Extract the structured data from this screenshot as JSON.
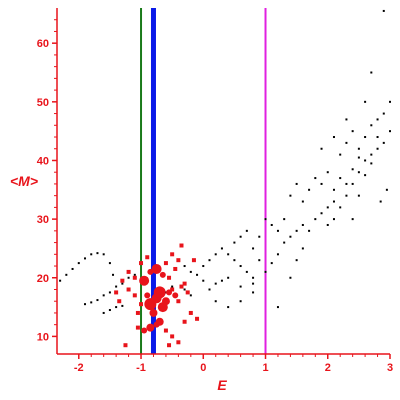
{
  "chart_data": {
    "type": "scatter",
    "xlabel": "E",
    "ylabel": "<M>",
    "xlim": [
      -2.35,
      3.0
    ],
    "ylim": [
      7,
      66
    ],
    "x_ticks": [
      -2,
      -1,
      0,
      1,
      2,
      3
    ],
    "y_ticks": [
      10,
      20,
      30,
      40,
      50,
      60
    ],
    "x_tick_labels": [
      "-2",
      "-1",
      "0",
      "1",
      "2",
      "3"
    ],
    "y_tick_labels": [
      "10",
      "20",
      "30",
      "40",
      "50",
      "60"
    ],
    "grid": false,
    "colors": {
      "axes": "#e8141b",
      "black_points": "#000000",
      "red_points": "#e8141b"
    },
    "vertical_lines": [
      {
        "x": -1.0,
        "color": "#1a7a1a"
      },
      {
        "x": -0.8,
        "color": "#0a1ae8"
      },
      {
        "x": 1.0,
        "color": "#e020e0"
      }
    ],
    "series": [
      {
        "color": "#000000",
        "style": "small-dots",
        "points": [
          [
            -2.3,
            19.5
          ],
          [
            -2.2,
            20.5
          ],
          [
            -2.1,
            21.5
          ],
          [
            -2.0,
            22.5
          ],
          [
            -1.9,
            23.3
          ],
          [
            -1.8,
            24.0
          ],
          [
            -1.7,
            24.2
          ],
          [
            -1.6,
            24.0
          ],
          [
            -1.5,
            22.5
          ],
          [
            -1.45,
            20.5
          ],
          [
            -1.9,
            15.5
          ],
          [
            -1.8,
            15.8
          ],
          [
            -1.7,
            16.2
          ],
          [
            -1.6,
            17.0
          ],
          [
            -1.5,
            17.5
          ],
          [
            -1.4,
            18.5
          ],
          [
            -1.3,
            19.0
          ],
          [
            -1.2,
            20.0
          ],
          [
            -1.1,
            20.5
          ],
          [
            -1.6,
            14.0
          ],
          [
            -1.5,
            14.5
          ],
          [
            -1.4,
            15.0
          ],
          [
            -1.3,
            15.2
          ],
          [
            -0.4,
            23.0
          ],
          [
            -0.3,
            22.0
          ],
          [
            -0.2,
            21.0
          ],
          [
            -0.1,
            20.5
          ],
          [
            0.0,
            19.5
          ],
          [
            0.1,
            18.0
          ],
          [
            0.2,
            19.0
          ],
          [
            0.3,
            19.5
          ],
          [
            0.4,
            20.0
          ],
          [
            0.0,
            22.0
          ],
          [
            0.1,
            23.0
          ],
          [
            0.2,
            24.0
          ],
          [
            0.3,
            25.0
          ],
          [
            0.4,
            24.0
          ],
          [
            0.5,
            23.0
          ],
          [
            0.6,
            22.0
          ],
          [
            0.7,
            21.0
          ],
          [
            0.8,
            20.0
          ],
          [
            0.5,
            26.0
          ],
          [
            0.6,
            27.0
          ],
          [
            0.7,
            28.0
          ],
          [
            0.8,
            25.0
          ],
          [
            0.9,
            27.0
          ],
          [
            1.0,
            30.0
          ],
          [
            1.1,
            29.0
          ],
          [
            1.2,
            28.0
          ],
          [
            1.3,
            30.0
          ],
          [
            0.6,
            18.5
          ],
          [
            0.8,
            17.5
          ],
          [
            1.0,
            21.0
          ],
          [
            1.1,
            22.5
          ],
          [
            1.2,
            24.0
          ],
          [
            1.3,
            26.0
          ],
          [
            1.4,
            27.0
          ],
          [
            1.5,
            28.0
          ],
          [
            1.6,
            29.0
          ],
          [
            1.2,
            15.0
          ],
          [
            1.4,
            20.0
          ],
          [
            1.5,
            23.0
          ],
          [
            1.6,
            25.0
          ],
          [
            1.7,
            28.0
          ],
          [
            1.8,
            30.0
          ],
          [
            1.9,
            31.0
          ],
          [
            2.0,
            32.0
          ],
          [
            2.1,
            33.0
          ],
          [
            1.4,
            34.0
          ],
          [
            1.5,
            36.0
          ],
          [
            1.6,
            33.0
          ],
          [
            1.7,
            35.0
          ],
          [
            1.8,
            37.0
          ],
          [
            1.9,
            36.0
          ],
          [
            2.0,
            38.0
          ],
          [
            2.1,
            35.0
          ],
          [
            2.2,
            37.0
          ],
          [
            2.0,
            29.0
          ],
          [
            2.1,
            30.0
          ],
          [
            2.2,
            32.0
          ],
          [
            2.3,
            34.0
          ],
          [
            2.4,
            36.0
          ],
          [
            2.5,
            38.0
          ],
          [
            2.6,
            40.0
          ],
          [
            2.7,
            41.0
          ],
          [
            2.8,
            42.0
          ],
          [
            2.2,
            41.0
          ],
          [
            2.3,
            43.0
          ],
          [
            2.4,
            45.0
          ],
          [
            2.5,
            42.0
          ],
          [
            2.6,
            44.0
          ],
          [
            2.7,
            46.0
          ],
          [
            2.8,
            47.0
          ],
          [
            2.9,
            48.0
          ],
          [
            3.0,
            50.0
          ],
          [
            2.3,
            36.0
          ],
          [
            2.4,
            38.5
          ],
          [
            2.5,
            40.5
          ],
          [
            2.6,
            37.5
          ],
          [
            2.7,
            39.5
          ],
          [
            2.8,
            44.0
          ],
          [
            2.9,
            43.0
          ],
          [
            3.0,
            45.0
          ],
          [
            2.95,
            35.0
          ],
          [
            2.7,
            55.0
          ],
          [
            2.9,
            65.5
          ],
          [
            2.6,
            50.0
          ],
          [
            2.3,
            47.0
          ],
          [
            2.1,
            44.0
          ],
          [
            1.9,
            42.0
          ],
          [
            2.85,
            33.0
          ],
          [
            2.5,
            34.0
          ],
          [
            2.4,
            30.0
          ],
          [
            -0.5,
            18.5
          ],
          [
            -0.6,
            17.5
          ],
          [
            -0.3,
            18.0
          ],
          [
            -0.2,
            17.0
          ],
          [
            0.2,
            16.0
          ],
          [
            0.4,
            15.0
          ],
          [
            0.6,
            16.0
          ],
          [
            0.8,
            19.0
          ],
          [
            0.9,
            23.0
          ]
        ]
      },
      {
        "color": "#e8141b",
        "style": "sized-markers",
        "points": [
          [
            -1.0,
            15.5,
            2
          ],
          [
            -0.95,
            19.5,
            5
          ],
          [
            -0.9,
            17.0,
            3
          ],
          [
            -0.85,
            15.5,
            6
          ],
          [
            -0.8,
            14.0,
            4
          ],
          [
            -0.75,
            16.5,
            5
          ],
          [
            -0.7,
            17.5,
            6
          ],
          [
            -0.65,
            15.0,
            5
          ],
          [
            -0.7,
            12.5,
            4
          ],
          [
            -0.6,
            16.0,
            4
          ],
          [
            -0.55,
            17.5,
            3
          ],
          [
            -0.5,
            18.0,
            2
          ],
          [
            -0.45,
            17.0,
            3
          ],
          [
            -0.4,
            16.0,
            2
          ],
          [
            -0.35,
            18.5,
            2
          ],
          [
            -0.3,
            19.0,
            2
          ],
          [
            -0.25,
            17.5,
            2
          ],
          [
            -0.85,
            21.0,
            3
          ],
          [
            -0.75,
            21.5,
            5
          ],
          [
            -0.65,
            20.5,
            3
          ],
          [
            -0.55,
            20.0,
            2
          ],
          [
            -0.45,
            21.5,
            2
          ],
          [
            -0.4,
            23.0,
            2
          ],
          [
            -0.5,
            24.0,
            2
          ],
          [
            -0.6,
            22.5,
            2
          ],
          [
            -1.3,
            19.5,
            2
          ],
          [
            -1.2,
            18.0,
            2
          ],
          [
            -1.1,
            17.0,
            2
          ],
          [
            -1.1,
            20.0,
            2
          ],
          [
            -1.2,
            21.0,
            2
          ],
          [
            -1.05,
            14.0,
            2
          ],
          [
            -1.05,
            11.5,
            2
          ],
          [
            -0.95,
            11.0,
            3
          ],
          [
            -0.85,
            11.5,
            4
          ],
          [
            -0.75,
            12.0,
            3
          ],
          [
            -0.6,
            11.0,
            2
          ],
          [
            -0.5,
            10.0,
            2
          ],
          [
            -0.4,
            9.0,
            2
          ],
          [
            -0.2,
            14.0,
            2
          ],
          [
            -0.1,
            13.0,
            2
          ],
          [
            -0.3,
            12.5,
            2
          ],
          [
            -1.4,
            17.5,
            2
          ],
          [
            -1.35,
            16.0,
            2
          ],
          [
            -1.0,
            22.5,
            2
          ],
          [
            -0.9,
            23.5,
            2
          ],
          [
            -0.35,
            25.5,
            2
          ],
          [
            -0.55,
            8.5,
            2
          ],
          [
            -1.25,
            8.5,
            2
          ],
          [
            -0.15,
            23.0,
            2
          ]
        ]
      }
    ]
  }
}
